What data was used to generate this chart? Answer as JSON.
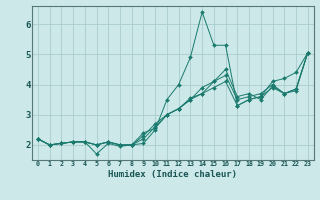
{
  "xlabel": "Humidex (Indice chaleur)",
  "bg_color": "#cce8e8",
  "grid_color": "#aacccc",
  "line_color": "#1a7a6e",
  "xlim": [
    -0.5,
    23.5
  ],
  "ylim": [
    1.5,
    6.6
  ],
  "xticks": [
    0,
    1,
    2,
    3,
    4,
    5,
    6,
    7,
    8,
    9,
    10,
    11,
    12,
    13,
    14,
    15,
    16,
    17,
    18,
    19,
    20,
    21,
    22,
    23
  ],
  "yticks": [
    2,
    3,
    4,
    5,
    6
  ],
  "series": [
    [
      2.2,
      2.0,
      2.05,
      2.1,
      2.1,
      1.7,
      2.05,
      1.95,
      2.0,
      2.05,
      2.5,
      3.5,
      4.0,
      4.9,
      6.4,
      5.3,
      5.3,
      3.3,
      3.5,
      3.6,
      3.9,
      3.7,
      3.8,
      5.05
    ],
    [
      2.2,
      2.0,
      2.05,
      2.1,
      2.1,
      2.0,
      2.1,
      2.0,
      2.0,
      2.2,
      2.6,
      3.0,
      3.2,
      3.5,
      3.7,
      3.9,
      4.1,
      3.3,
      3.5,
      3.6,
      4.1,
      4.2,
      4.4,
      5.05
    ],
    [
      2.2,
      2.0,
      2.05,
      2.1,
      2.1,
      2.0,
      2.1,
      2.0,
      2.0,
      2.3,
      2.7,
      3.0,
      3.2,
      3.5,
      3.9,
      4.1,
      4.3,
      3.5,
      3.6,
      3.7,
      4.0,
      3.7,
      3.85,
      5.05
    ],
    [
      2.2,
      2.0,
      2.05,
      2.1,
      2.1,
      2.0,
      2.1,
      2.0,
      2.0,
      2.4,
      2.55,
      3.0,
      3.2,
      3.55,
      3.7,
      4.1,
      4.5,
      3.6,
      3.7,
      3.5,
      3.95,
      3.7,
      3.85,
      5.05
    ]
  ]
}
